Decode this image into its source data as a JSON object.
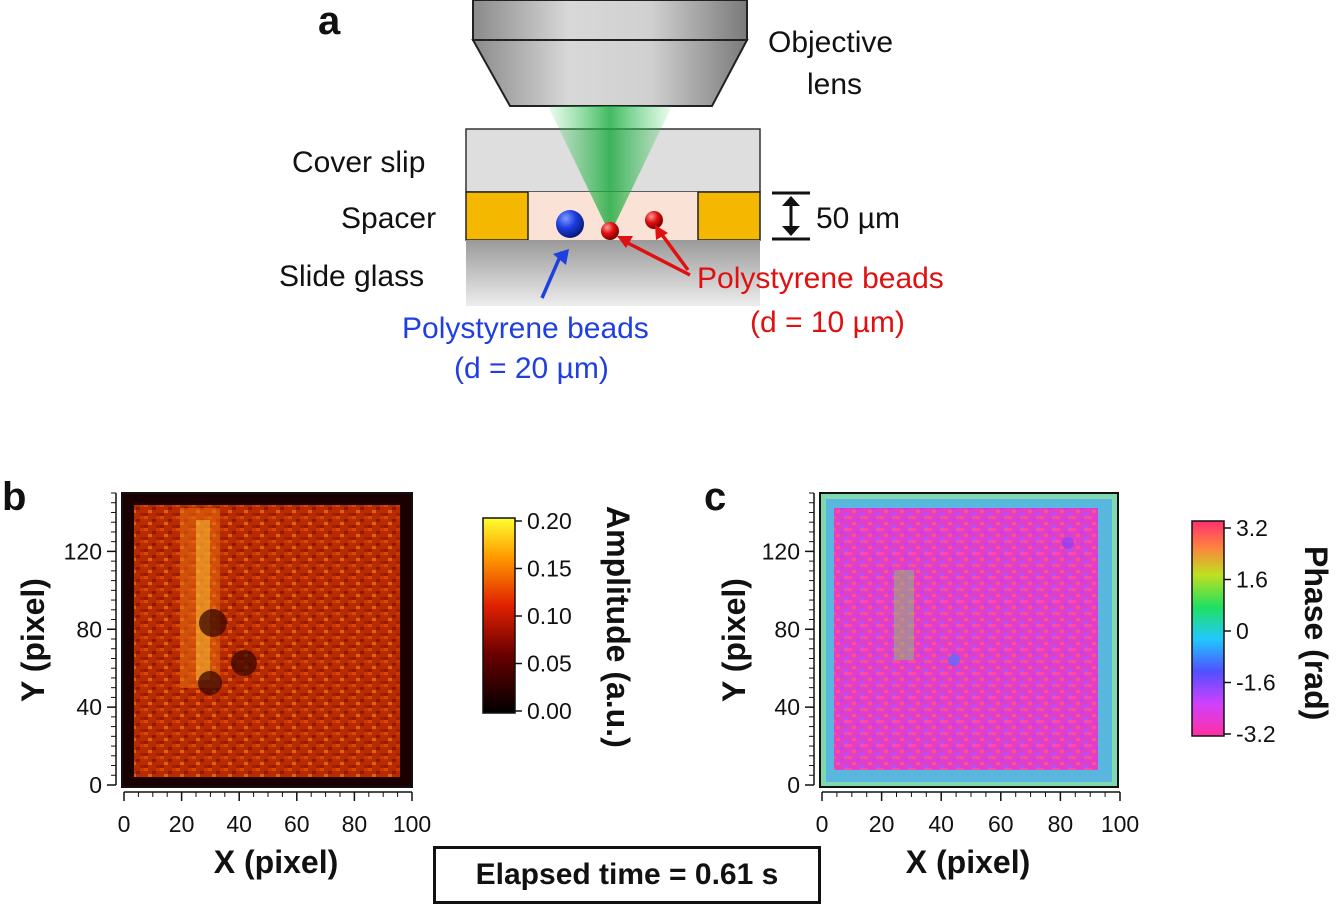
{
  "panel_a": {
    "letter": "a",
    "objective_label_line1": "Objective",
    "objective_label_line2": "lens",
    "cover_slip_label": "Cover slip",
    "spacer_label": "Spacer",
    "slide_glass_label": "Slide glass",
    "thickness_label": "50 µm",
    "beads_20": {
      "line1": "Polystyrene beads",
      "line2": "(d = 20 µm)",
      "color": "#1f3fe0"
    },
    "beads_10": {
      "line1": "Polystyrene beads",
      "line2": "(d = 10 µm)",
      "color": "#e01010"
    }
  },
  "panel_b": {
    "letter": "b",
    "xlabel": "X (pixel)",
    "ylabel": "Y (pixel)",
    "x_ticks": [
      "0",
      "20",
      "40",
      "60",
      "80",
      "100"
    ],
    "y_ticks": [
      "0",
      "40",
      "80",
      "120"
    ],
    "colorbar_label": "Amplitude (a.u.)",
    "colorbar_ticks": [
      "0.20",
      "0.15",
      "0.10",
      "0.05",
      "0.00"
    ]
  },
  "panel_c": {
    "letter": "c",
    "xlabel": "X (pixel)",
    "ylabel": "Y (pixel)",
    "x_ticks": [
      "0",
      "20",
      "40",
      "60",
      "80",
      "100"
    ],
    "y_ticks": [
      "0",
      "40",
      "80",
      "120"
    ],
    "colorbar_label": "Phase (rad)",
    "colorbar_ticks": [
      "3.2",
      "1.6",
      "0",
      "-1.6",
      "-3.2"
    ]
  },
  "elapsed_time_label": "Elapsed time = 0.61 s"
}
